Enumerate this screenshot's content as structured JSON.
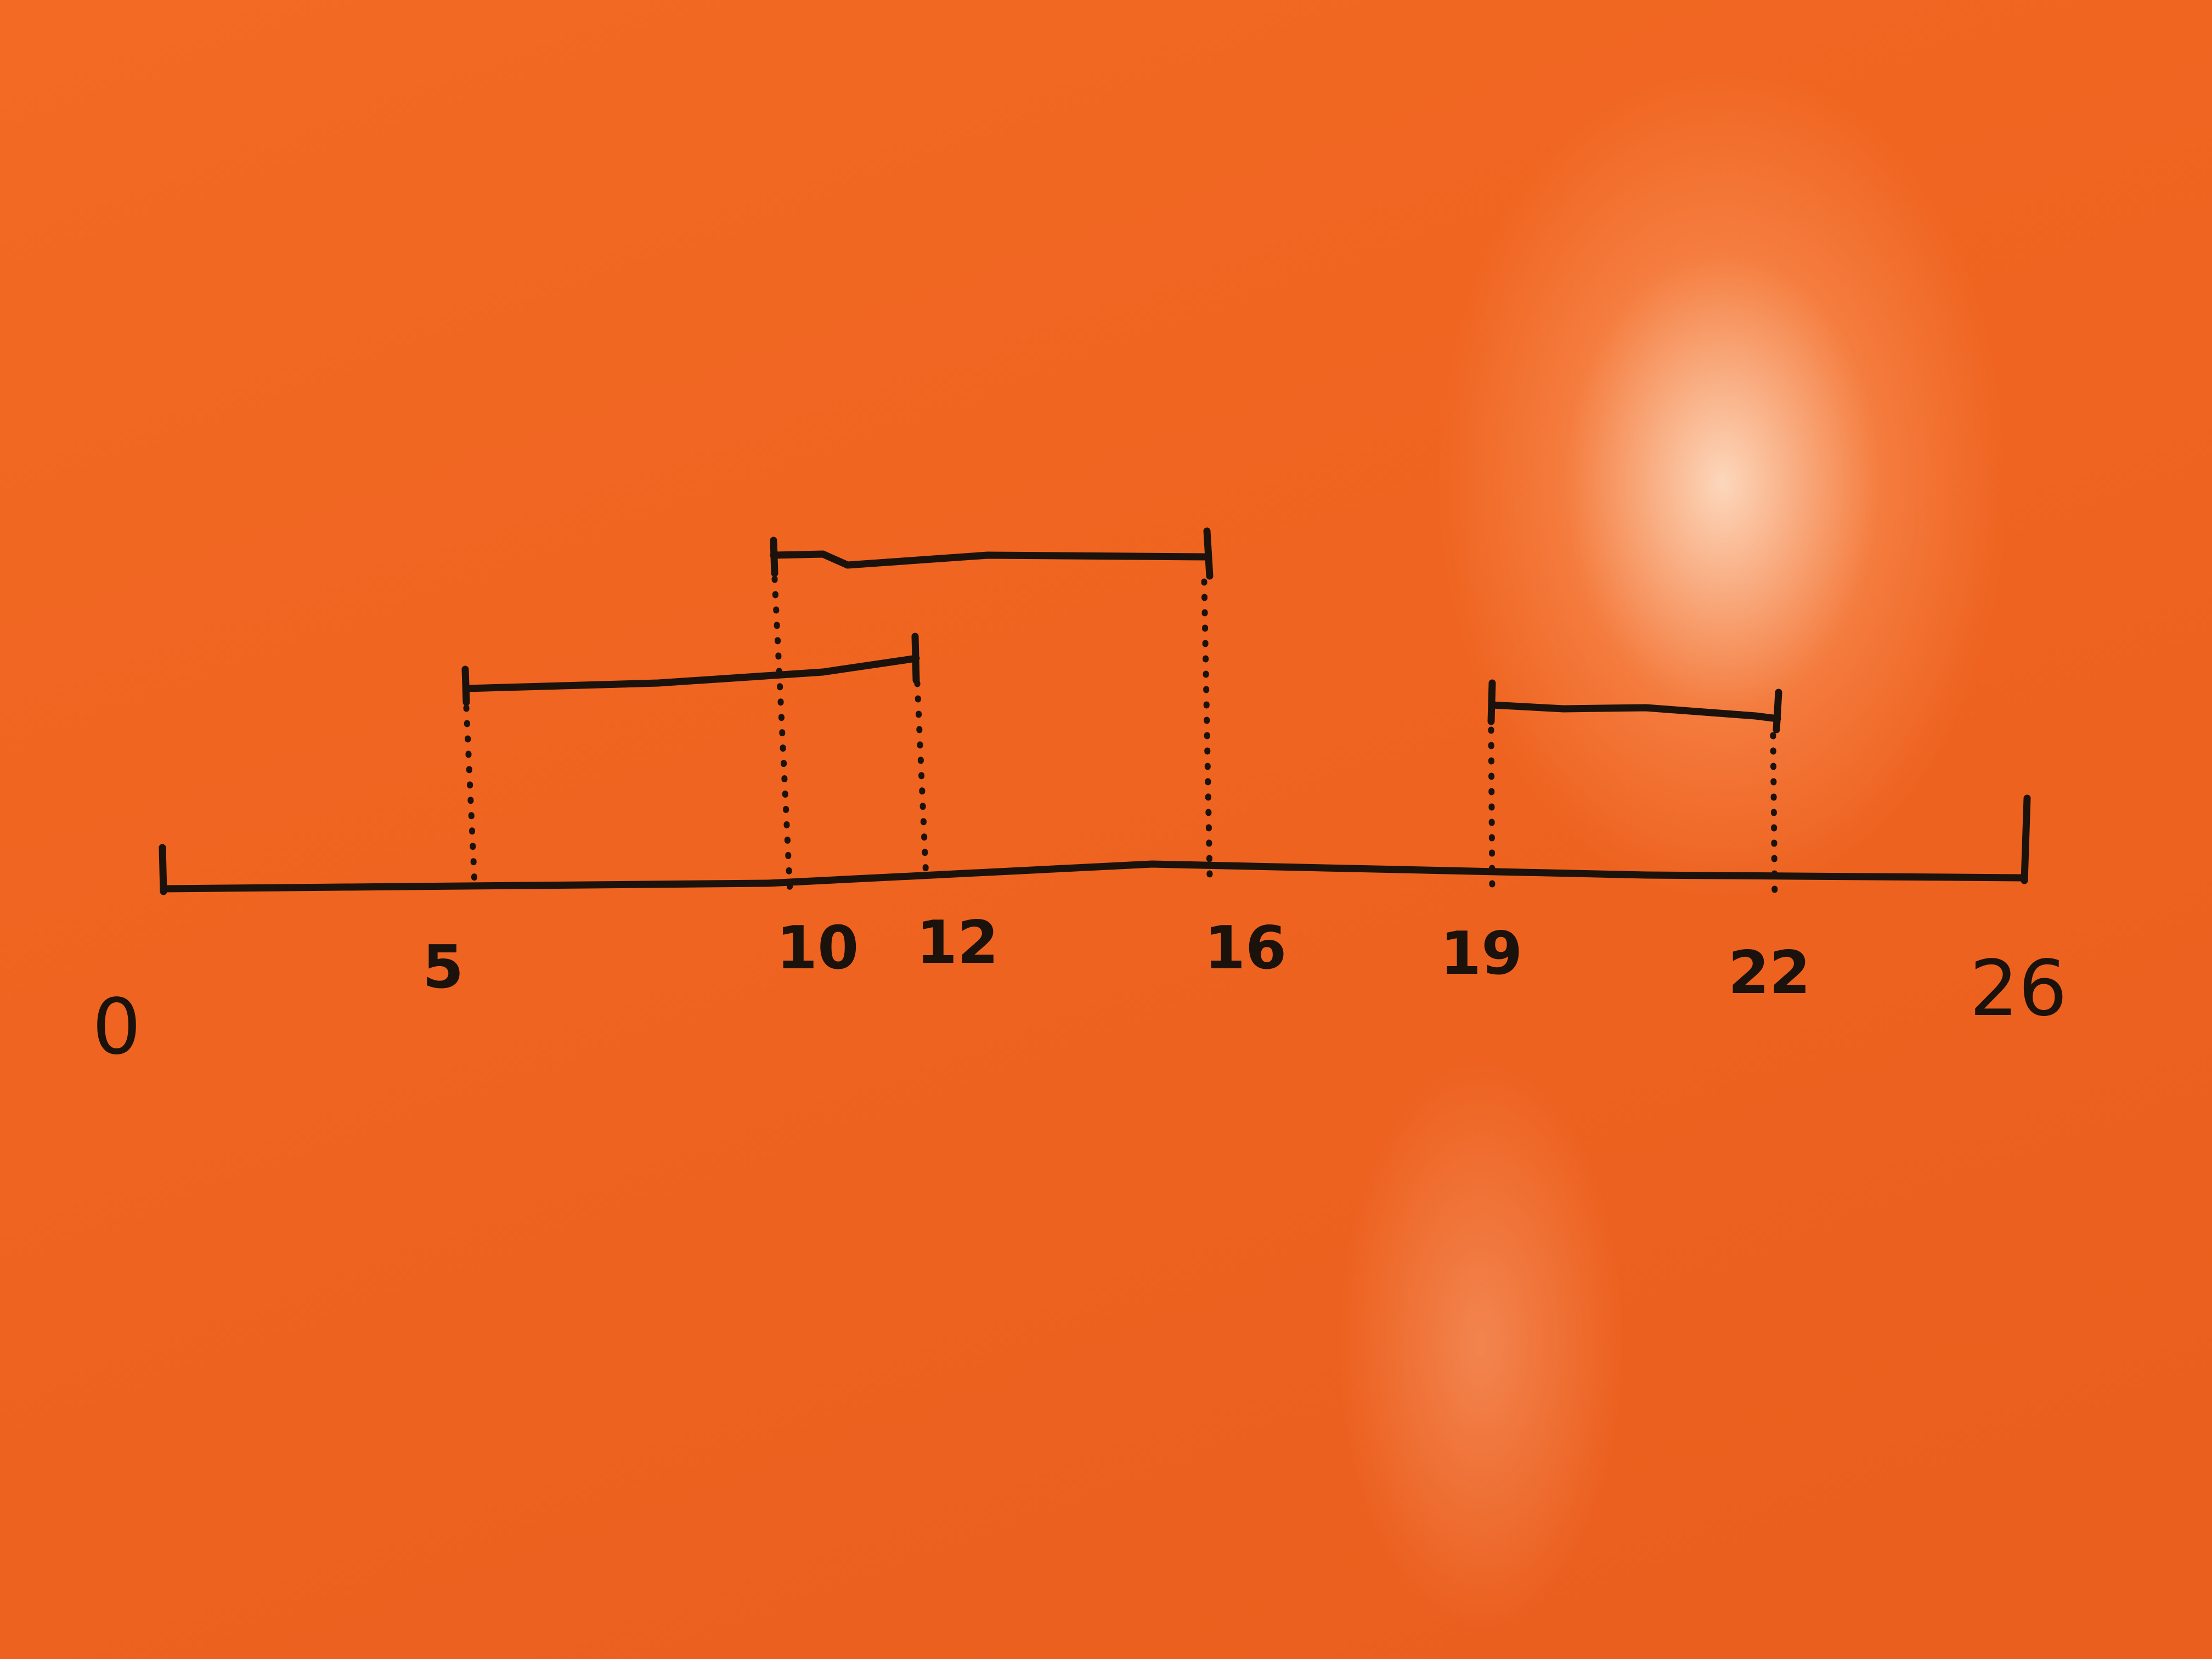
{
  "diagram": {
    "axis": {
      "min": 0,
      "max": 26,
      "tick_labels": [
        "0",
        "5",
        "10",
        "12",
        "16",
        "19",
        "22",
        "26"
      ]
    },
    "intervals": [
      {
        "start": 5,
        "end": 12
      },
      {
        "start": 10,
        "end": 16
      },
      {
        "start": 19,
        "end": 22
      }
    ],
    "colors": {
      "background": "#ef6420",
      "ink": "#1c120c"
    }
  }
}
